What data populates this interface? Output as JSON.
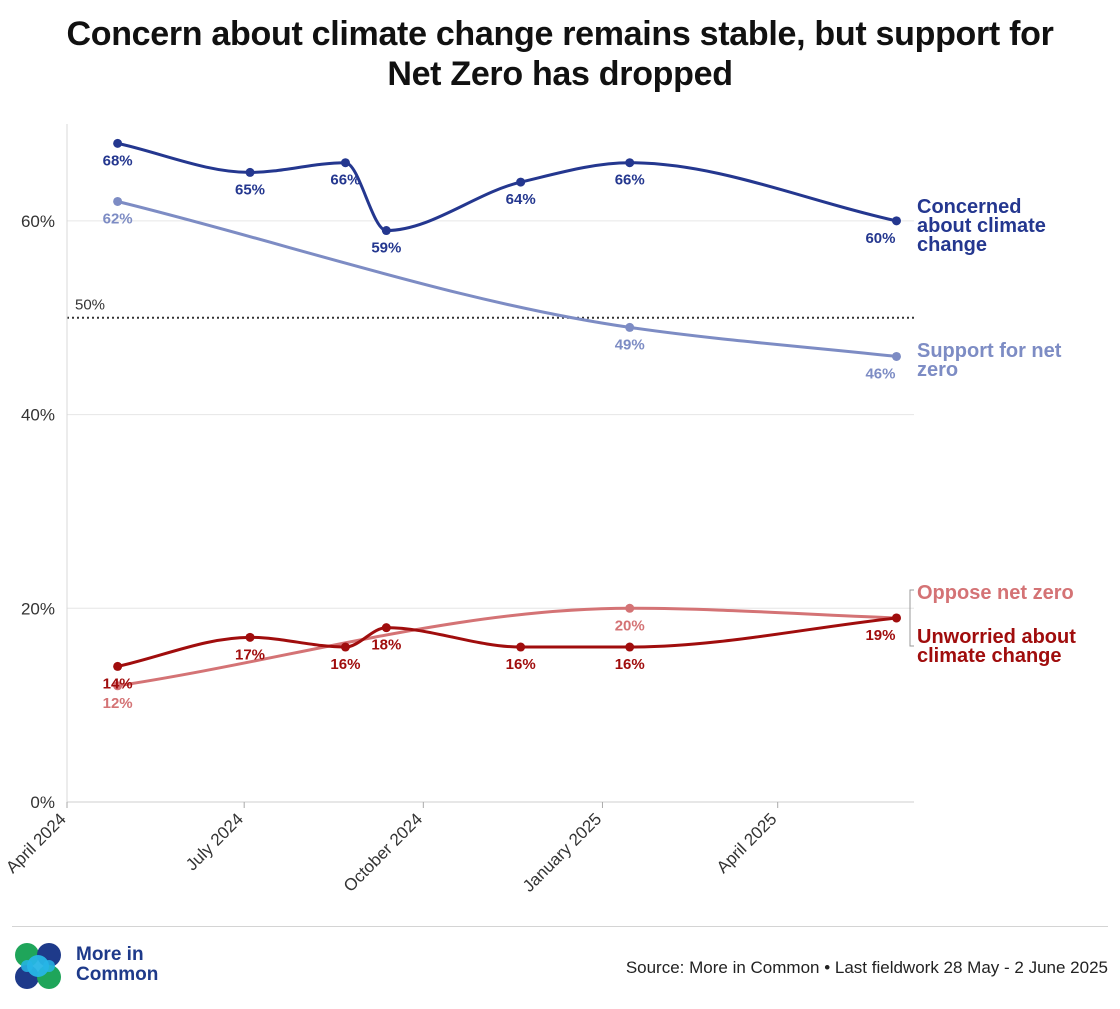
{
  "title_lines": [
    "Concern about climate change remains stable, but support for",
    "Net Zero has dropped"
  ],
  "footer": {
    "source": "Source: More in Common • Last fieldwork 28 May - 2 June 2025",
    "logo_line1": "More in",
    "logo_line2": "Common"
  },
  "chart_data": {
    "type": "line",
    "title": "Concern about climate change remains stable, but support for Net Zero has dropped",
    "xlabel": "",
    "ylabel": "",
    "ylim": [
      0,
      70
    ],
    "yticks": [
      0,
      20,
      40,
      60
    ],
    "ytick_labels": [
      "0%",
      "20%",
      "40%",
      "60%"
    ],
    "x_axis_ticks": [
      {
        "date": "2024-04-01",
        "label": "April 2024"
      },
      {
        "date": "2024-07-01",
        "label": "July 2024"
      },
      {
        "date": "2024-10-01",
        "label": "October 2024"
      },
      {
        "date": "2025-01-01",
        "label": "January 2025"
      },
      {
        "date": "2025-04-01",
        "label": "April 2025"
      }
    ],
    "xlim": [
      "2024-04-01",
      "2025-06-10"
    ],
    "reference_line": {
      "value": 50,
      "label": "50%",
      "style": "dotted"
    },
    "grid": true,
    "series": [
      {
        "name": "Concerned about climate change",
        "color": "#24378f",
        "label_lines": [
          "Concerned",
          "about climate",
          "change"
        ],
        "points": [
          {
            "date": "2024-04-27",
            "value": 68,
            "label": "68%"
          },
          {
            "date": "2024-07-04",
            "value": 65,
            "label": "65%"
          },
          {
            "date": "2024-08-22",
            "value": 66,
            "label": "66%"
          },
          {
            "date": "2024-09-12",
            "value": 59,
            "label": "59%"
          },
          {
            "date": "2024-11-20",
            "value": 64,
            "label": "64%"
          },
          {
            "date": "2025-01-15",
            "value": 66,
            "label": "66%"
          },
          {
            "date": "2025-06-01",
            "value": 60,
            "label": "60%"
          }
        ]
      },
      {
        "name": "Support for net zero",
        "color": "#7d8cc4",
        "label_lines": [
          "Support for net",
          "zero"
        ],
        "points": [
          {
            "date": "2024-04-27",
            "value": 62,
            "label": "62%"
          },
          {
            "date": "2025-01-15",
            "value": 49,
            "label": "49%"
          },
          {
            "date": "2025-06-01",
            "value": 46,
            "label": "46%"
          }
        ]
      },
      {
        "name": "Oppose net zero",
        "color": "#d47375",
        "label_lines": [
          "Oppose net zero"
        ],
        "points": [
          {
            "date": "2024-04-27",
            "value": 12,
            "label": "12%"
          },
          {
            "date": "2025-01-15",
            "value": 20,
            "label": "20%"
          },
          {
            "date": "2025-06-01",
            "value": 19,
            "label": ""
          }
        ]
      },
      {
        "name": "Unworried about climate change",
        "color": "#a00d0d",
        "label_lines": [
          "Unworried about",
          "climate change"
        ],
        "points": [
          {
            "date": "2024-04-27",
            "value": 14,
            "label": "14%"
          },
          {
            "date": "2024-07-04",
            "value": 17,
            "label": "17%"
          },
          {
            "date": "2024-08-22",
            "value": 16,
            "label": "16%"
          },
          {
            "date": "2024-09-12",
            "value": 18,
            "label": "18%"
          },
          {
            "date": "2024-11-20",
            "value": 16,
            "label": "16%"
          },
          {
            "date": "2025-01-15",
            "value": 16,
            "label": "16%"
          },
          {
            "date": "2025-06-01",
            "value": 19,
            "label": "19%"
          }
        ]
      }
    ]
  }
}
